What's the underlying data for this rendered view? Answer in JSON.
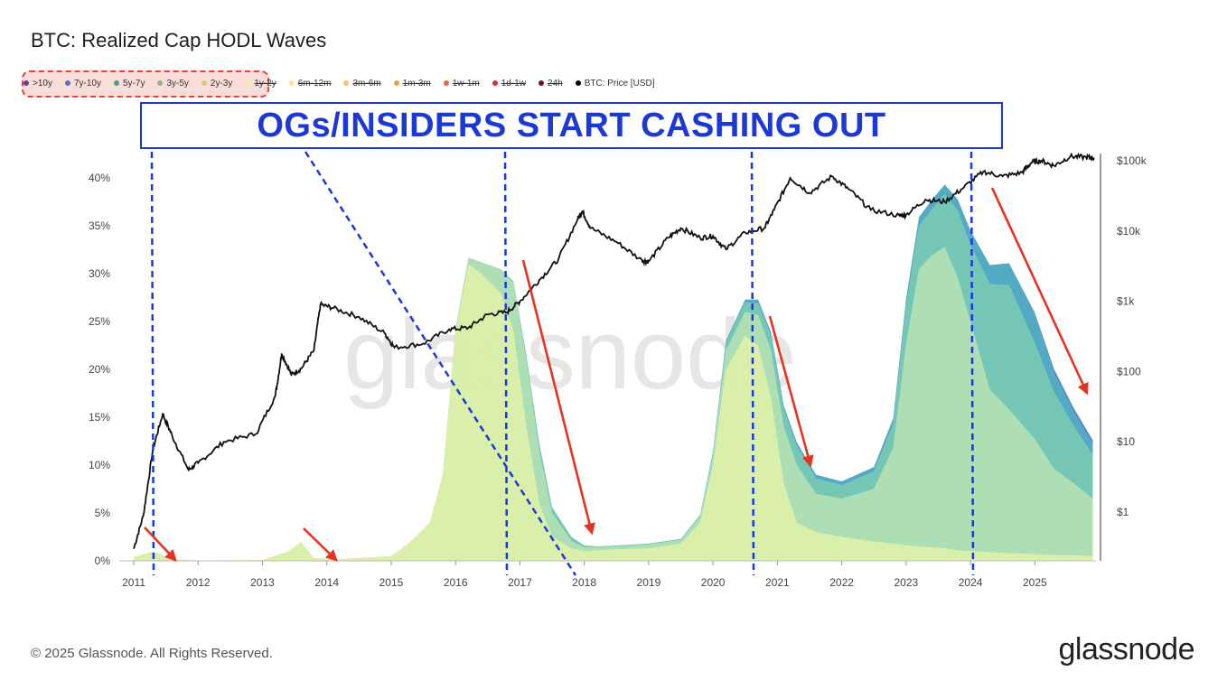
{
  "header": {
    "title": "BTC: Realized Cap HODL Waves"
  },
  "legend": [
    {
      "label": ">10y",
      "color": "#6a3d9a",
      "active": true
    },
    {
      "label": "7y-10y",
      "color": "#5a73b8",
      "active": true
    },
    {
      "label": "5y-7y",
      "color": "#4f9a8a",
      "active": true
    },
    {
      "label": "3y-5y",
      "color": "#85b98a",
      "active": true
    },
    {
      "label": "2y-3y",
      "color": "#c9d77a",
      "active": true
    },
    {
      "label": "1y-2y",
      "color": "#e9f0a8",
      "active": false
    },
    {
      "label": "6m-12m",
      "color": "#f5e6a0",
      "active": false
    },
    {
      "label": "3m-6m",
      "color": "#f3c56a",
      "active": false
    },
    {
      "label": "1m-3m",
      "color": "#ef9c50",
      "active": false
    },
    {
      "label": "1w-1m",
      "color": "#e66a3e",
      "active": false
    },
    {
      "label": "1d-1w",
      "color": "#d2343a",
      "active": false
    },
    {
      "label": "24h",
      "color": "#7a0f2a",
      "active": false
    },
    {
      "label": "BTC: Price [USD]",
      "color": "#000000",
      "active": true
    }
  ],
  "annotation": {
    "banner": "OGs/INSIDERS START CASHING OUT"
  },
  "watermark": "glassnode",
  "footer": {
    "copyright": "© 2025 Glassnode. All Rights Reserved.",
    "brand": "glassnode"
  },
  "chart_data": {
    "type": "area",
    "x_ticks": [
      "2011",
      "2012",
      "2013",
      "2014",
      "2015",
      "2016",
      "2017",
      "2018",
      "2019",
      "2020",
      "2021",
      "2022",
      "2023",
      "2024",
      "2025"
    ],
    "xlim": [
      2011.0,
      2025.95
    ],
    "y_left": {
      "ticks": [
        "0%",
        "5%",
        "10%",
        "15%",
        "20%",
        "25%",
        "30%",
        "35%",
        "40%"
      ],
      "ylim": [
        0,
        42
      ]
    },
    "y_right": {
      "ticks": [
        "$1",
        "$10",
        "$100",
        "$1k",
        "$10k",
        "$100k"
      ],
      "scale": "log",
      "ylim": [
        0.15,
        250000
      ]
    },
    "x": [
      2011.0,
      2011.3,
      2011.6,
      2012.0,
      2013.0,
      2013.4,
      2013.6,
      2013.8,
      2014.2,
      2015.0,
      2015.3,
      2015.6,
      2015.8,
      2016.0,
      2016.2,
      2016.4,
      2016.7,
      2016.9,
      2017.1,
      2017.3,
      2017.5,
      2017.8,
      2018.0,
      2018.2,
      2018.5,
      2019.0,
      2019.5,
      2019.8,
      2020.0,
      2020.2,
      2020.5,
      2020.7,
      2020.9,
      2021.1,
      2021.3,
      2021.6,
      2022.0,
      2022.5,
      2022.8,
      2023.0,
      2023.2,
      2023.4,
      2023.6,
      2023.8,
      2024.0,
      2024.3,
      2024.6,
      2025.0,
      2025.3,
      2025.6,
      2025.9
    ],
    "series": [
      {
        "name": "2y-3y",
        "values": [
          0.4,
          1.0,
          0.2,
          0.05,
          0.1,
          1.0,
          2.0,
          0.3,
          0.2,
          0.5,
          2.0,
          4.0,
          9.0,
          24.0,
          31.0,
          30.0,
          28.0,
          24.0,
          14.0,
          6.0,
          2.5,
          1.3,
          1.0,
          1.1,
          1.2,
          1.3,
          1.8,
          4.0,
          10.0,
          20.0,
          23.5,
          22.5,
          17.0,
          8.0,
          4.0,
          3.0,
          2.5,
          2.0,
          1.8,
          1.6,
          1.5,
          1.4,
          1.3,
          1.1,
          1.0,
          0.9,
          0.8,
          0.7,
          0.6,
          0.6,
          0.5
        ]
      },
      {
        "name": "3y-5y",
        "values": [
          0,
          0,
          0,
          0,
          0,
          0,
          0,
          0,
          0,
          0,
          0,
          0,
          0,
          0.3,
          0.7,
          1.2,
          2.5,
          5.0,
          7.0,
          5.5,
          2.5,
          0.8,
          0.4,
          0.3,
          0.3,
          0.4,
          0.4,
          0.6,
          1.0,
          2.0,
          2.5,
          3.2,
          5.0,
          6.0,
          6.0,
          4.0,
          4.0,
          5.5,
          10.0,
          21.0,
          29.0,
          30.5,
          31.5,
          28.5,
          24.0,
          17.0,
          15.0,
          12.0,
          9.0,
          7.5,
          6.0
        ]
      },
      {
        "name": "5y-7y",
        "values": [
          0,
          0,
          0,
          0,
          0,
          0,
          0,
          0,
          0,
          0,
          0,
          0,
          0,
          0,
          0,
          0,
          0,
          0.2,
          0.5,
          0.8,
          0.6,
          0.4,
          0.2,
          0.1,
          0.1,
          0.1,
          0.1,
          0.2,
          0.4,
          0.8,
          1.0,
          1.2,
          1.5,
          1.8,
          2.0,
          1.6,
          1.4,
          1.8,
          2.5,
          4.0,
          4.5,
          4.8,
          5.5,
          7.0,
          8.0,
          11.0,
          13.0,
          10.0,
          8.0,
          6.0,
          4.5
        ]
      },
      {
        "name": "7y-10y",
        "values": [
          0,
          0,
          0,
          0,
          0,
          0,
          0,
          0,
          0,
          0,
          0,
          0,
          0,
          0,
          0,
          0,
          0,
          0,
          0,
          0,
          0,
          0,
          0,
          0,
          0,
          0,
          0,
          0,
          0.1,
          0.2,
          0.3,
          0.4,
          0.4,
          0.4,
          0.4,
          0.4,
          0.4,
          0.5,
          0.6,
          0.8,
          0.9,
          1.0,
          1.0,
          1.2,
          1.5,
          2.0,
          2.3,
          3.0,
          2.0,
          1.5,
          1.2
        ]
      },
      {
        "name": ">10y",
        "values": [
          0,
          0,
          0,
          0,
          0,
          0,
          0,
          0,
          0,
          0,
          0,
          0,
          0,
          0,
          0,
          0,
          0,
          0,
          0,
          0,
          0,
          0,
          0,
          0,
          0,
          0,
          0,
          0,
          0,
          0,
          0,
          0,
          0,
          0,
          0,
          0,
          0,
          0,
          0,
          0,
          0,
          0,
          0,
          0,
          0,
          0,
          0,
          0.2,
          0.4,
          0.4,
          0.4
        ]
      }
    ],
    "price": {
      "name": "BTC: Price [USD]",
      "x": [
        2011.0,
        2011.15,
        2011.3,
        2011.45,
        2011.6,
        2011.85,
        2012.0,
        2012.4,
        2012.9,
        2013.2,
        2013.3,
        2013.45,
        2013.6,
        2013.8,
        2013.9,
        2014.1,
        2014.5,
        2014.9,
        2015.05,
        2015.5,
        2015.9,
        2016.2,
        2016.5,
        2016.8,
        2017.0,
        2017.3,
        2017.6,
        2017.9,
        2017.97,
        2018.1,
        2018.5,
        2018.9,
        2019.0,
        2019.3,
        2019.5,
        2019.8,
        2020.0,
        2020.2,
        2020.5,
        2020.8,
        2020.95,
        2021.2,
        2021.5,
        2021.85,
        2022.1,
        2022.45,
        2022.9,
        2023.0,
        2023.3,
        2023.6,
        2023.9,
        2024.2,
        2024.5,
        2024.8,
        2024.95,
        2025.1,
        2025.3,
        2025.55,
        2025.8,
        2025.92
      ],
      "values": [
        0.3,
        0.9,
        8,
        25,
        12,
        4,
        5,
        10,
        13,
        45,
        180,
        90,
        110,
        200,
        900,
        800,
        600,
        350,
        220,
        250,
        400,
        420,
        650,
        700,
        1000,
        2000,
        4000,
        15000,
        19000,
        11000,
        7000,
        3800,
        3700,
        8000,
        11000,
        8000,
        8500,
        5500,
        9500,
        11000,
        20000,
        57000,
        35000,
        60000,
        40000,
        20000,
        16500,
        17000,
        28000,
        26000,
        42000,
        70000,
        60000,
        68000,
        95000,
        100000,
        85000,
        115000,
        112000,
        110000
      ]
    }
  }
}
